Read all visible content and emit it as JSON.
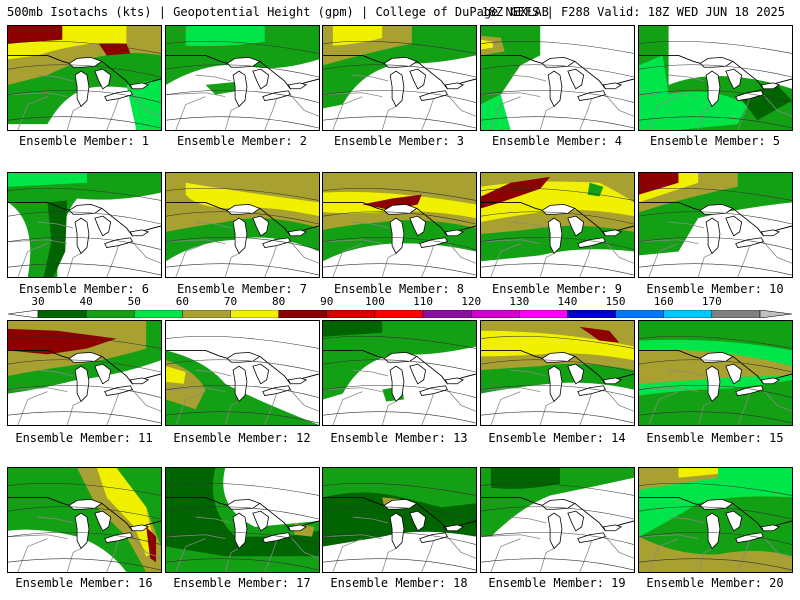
{
  "header": {
    "left": "500mb Isotachs (kts) | Geopotential Height (gpm) | College of DuPage NEXLAB",
    "right": "18Z GEFS | F288 Valid: 18Z WED JUN 18 2025"
  },
  "colors": {
    "c30": "#006400",
    "c40": "#14a014",
    "c50": "#00e64a",
    "c60": "#a8a030",
    "c70": "#f0f000",
    "c80": "#8c0000",
    "c90": "#d60000",
    "c100": "#ff0000",
    "c110": "#8c10a0",
    "c120": "#d000d0",
    "c130": "#ff00ff",
    "c140": "#0000c8",
    "c150": "#0078ff",
    "c160": "#00c8ff",
    "c170": "#808080",
    "c170plus": "#c0c0c0"
  },
  "colorbar": {
    "labels": [
      "30",
      "40",
      "50",
      "60",
      "70",
      "80",
      "90",
      "100",
      "110",
      "120",
      "130",
      "140",
      "150",
      "160",
      "170"
    ]
  },
  "members": [
    {
      "label": "Ensemble Member: 1"
    },
    {
      "label": "Ensemble Member: 2"
    },
    {
      "label": "Ensemble Member: 3"
    },
    {
      "label": "Ensemble Member: 4"
    },
    {
      "label": "Ensemble Member: 5"
    },
    {
      "label": "Ensemble Member: 6"
    },
    {
      "label": "Ensemble Member: 7"
    },
    {
      "label": "Ensemble Member: 8"
    },
    {
      "label": "Ensemble Member: 9"
    },
    {
      "label": "Ensemble Member: 10"
    },
    {
      "label": "Ensemble Member: 11"
    },
    {
      "label": "Ensemble Member: 12"
    },
    {
      "label": "Ensemble Member: 13"
    },
    {
      "label": "Ensemble Member: 14"
    },
    {
      "label": "Ensemble Member: 15"
    },
    {
      "label": "Ensemble Member: 16"
    },
    {
      "label": "Ensemble Member: 17"
    },
    {
      "label": "Ensemble Member: 18"
    },
    {
      "label": "Ensemble Member: 19"
    },
    {
      "label": "Ensemble Member: 20"
    }
  ]
}
